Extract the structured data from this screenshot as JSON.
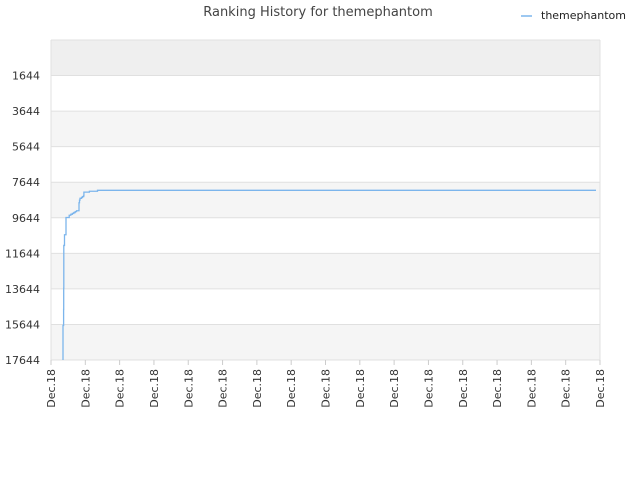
{
  "chart_data": {
    "type": "line",
    "title": "Ranking History for themephantom",
    "xlabel": "",
    "ylabel": "",
    "y_inverted": true,
    "ylim": [
      17644,
      -356
    ],
    "ytick_labels": [
      "1644",
      "3644",
      "5644",
      "7644",
      "9644",
      "11644",
      "13644",
      "15644",
      "17644"
    ],
    "xtick_labels": [
      "Dec.18",
      "Dec.18",
      "Dec.18",
      "Dec.18",
      "Dec.18",
      "Dec.18",
      "Dec.18",
      "Dec.18",
      "Dec.18",
      "Dec.18",
      "Dec.18",
      "Dec.18",
      "Dec.18",
      "Dec.18",
      "Dec.18",
      "Dec.18",
      "Dec.18"
    ],
    "grid": true,
    "legend_position": "top-right",
    "colors": {
      "series": "#7cb5ec",
      "band_dark": "#efefef",
      "band_light": "#f5f5f5",
      "grid": "#e0e0e0"
    },
    "series": [
      {
        "name": "themephantom",
        "x": [
          0.0,
          0.0,
          0.6,
          0.7,
          0.8,
          1.5,
          3.0,
          6.2,
          6.3,
          7.8,
          9.3,
          10.8,
          12.2,
          13.5,
          15.8,
          16.0,
          16.5,
          17.0,
          18.5,
          19.5,
          20.7,
          20.9,
          22.0,
          26.4,
          33.0,
          34.5,
          40.6
        ],
        "y": [
          17644,
          15700,
          14800,
          13600,
          11200,
          10600,
          9630,
          9500,
          9500,
          9450,
          9400,
          9350,
          9300,
          9250,
          9250,
          8800,
          8650,
          8550,
          8500,
          8450,
          8400,
          8200,
          8200,
          8150,
          8150,
          8100,
          8100
        ]
      }
    ]
  }
}
